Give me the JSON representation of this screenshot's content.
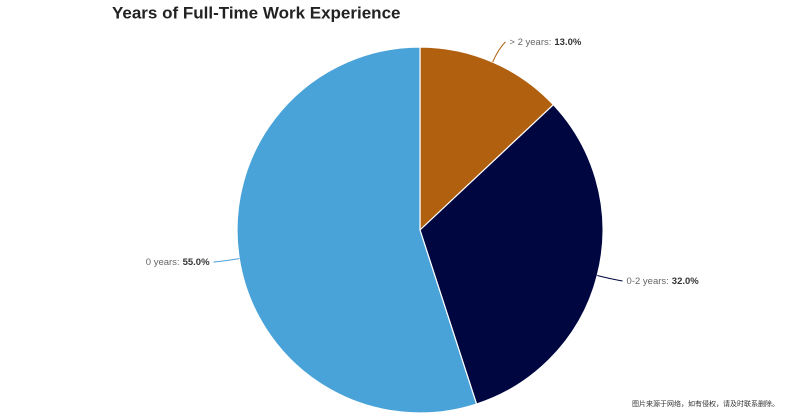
{
  "chart_data": {
    "type": "pie",
    "title": "Years of Full-Time Work Experience",
    "categories": [
      "> 2 years:",
      "0-2 years:",
      "0 years:"
    ],
    "values": [
      13,
      32,
      55
    ],
    "value_labels": [
      "13.0%",
      "32.0%",
      "55.0%"
    ],
    "colors": [
      "#b0600f",
      "#000640",
      "#4aa3d8"
    ]
  },
  "watermark": "图片来源于网络，如有侵权，请及时联系删除。"
}
